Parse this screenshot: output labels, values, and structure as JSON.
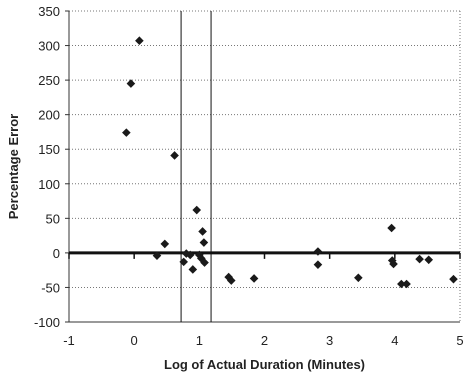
{
  "chart_data": {
    "type": "scatter",
    "title": "",
    "xlabel": "Log of Actual Duration (Minutes)",
    "ylabel": "Percentage Error",
    "xlim": [
      -1,
      5
    ],
    "ylim": [
      -100,
      350
    ],
    "x_ticks": [
      -1,
      0,
      1,
      2,
      3,
      4,
      5
    ],
    "y_ticks": [
      -100,
      -50,
      0,
      50,
      100,
      150,
      200,
      250,
      300,
      350
    ],
    "x_tick_labels": [
      "-1",
      "0",
      "1",
      "2",
      "3",
      "4",
      "5"
    ],
    "y_tick_labels": [
      "-100",
      "-50",
      "0",
      "50",
      "100",
      "150",
      "200",
      "250",
      "300",
      "350"
    ],
    "grid": "horizontal-dotted",
    "legend": "none",
    "reference_lines_x": [
      0.72,
      1.18
    ],
    "marker": "diamond",
    "marker_color": "#1a1a1a",
    "series": [
      {
        "points": [
          {
            "x": -0.12,
            "y": 174
          },
          {
            "x": -0.05,
            "y": 245
          },
          {
            "x": 0.08,
            "y": 307
          },
          {
            "x": 0.35,
            "y": -4
          },
          {
            "x": 0.47,
            "y": 13
          },
          {
            "x": 0.62,
            "y": 141
          },
          {
            "x": 0.76,
            "y": -13
          },
          {
            "x": 0.8,
            "y": -1
          },
          {
            "x": 0.86,
            "y": -3
          },
          {
            "x": 0.9,
            "y": -24
          },
          {
            "x": 0.96,
            "y": 62
          },
          {
            "x": 1.0,
            "y": -3
          },
          {
            "x": 1.03,
            "y": -8
          },
          {
            "x": 1.05,
            "y": 31
          },
          {
            "x": 1.07,
            "y": 15
          },
          {
            "x": 1.08,
            "y": -14
          },
          {
            "x": 1.45,
            "y": -35
          },
          {
            "x": 1.49,
            "y": -40
          },
          {
            "x": 1.84,
            "y": -37
          },
          {
            "x": 2.82,
            "y": 2
          },
          {
            "x": 2.82,
            "y": -17
          },
          {
            "x": 3.44,
            "y": -36
          },
          {
            "x": 3.95,
            "y": 36
          },
          {
            "x": 3.96,
            "y": -11
          },
          {
            "x": 3.98,
            "y": -16
          },
          {
            "x": 4.1,
            "y": -45
          },
          {
            "x": 4.18,
            "y": -45
          },
          {
            "x": 4.38,
            "y": -9
          },
          {
            "x": 4.52,
            "y": -10
          },
          {
            "x": 4.9,
            "y": -38
          }
        ]
      }
    ]
  }
}
